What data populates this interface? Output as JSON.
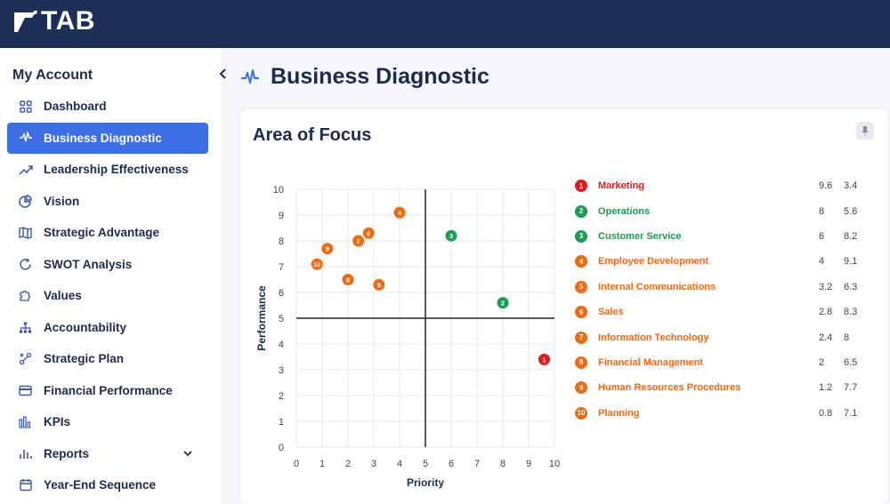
{
  "brand": {
    "logo_text": "TAB"
  },
  "sidebar": {
    "title": "My Account",
    "items": [
      {
        "label": "Dashboard",
        "icon": "grid-icon",
        "active": false
      },
      {
        "label": "Business Diagnostic",
        "icon": "pulse-icon",
        "active": true
      },
      {
        "label": "Leadership Effectiveness",
        "icon": "trending-up-icon",
        "active": false
      },
      {
        "label": "Vision",
        "icon": "pie-icon",
        "active": false
      },
      {
        "label": "Strategic Advantage",
        "icon": "map-icon",
        "active": false
      },
      {
        "label": "SWOT Analysis",
        "icon": "refresh-icon",
        "active": false
      },
      {
        "label": "Values",
        "icon": "puzzle-icon",
        "active": false
      },
      {
        "label": "Accountability",
        "icon": "org-chart-icon",
        "active": false
      },
      {
        "label": "Strategic Plan",
        "icon": "route-icon",
        "active": false
      },
      {
        "label": "Financial Performance",
        "icon": "card-icon",
        "active": false
      },
      {
        "label": "KPIs",
        "icon": "bars-icon",
        "active": false
      },
      {
        "label": "Reports",
        "icon": "bar-chart-icon",
        "active": false,
        "expandable": true
      },
      {
        "label": "Year-End Sequence",
        "icon": "calendar-icon",
        "active": false
      }
    ]
  },
  "page": {
    "title": "Business Diagnostic"
  },
  "card": {
    "title": "Area of Focus"
  },
  "colors": {
    "red": "#e01b1b",
    "green": "#1a9c52",
    "orange": "#f06a12",
    "navy": "#1b2f57",
    "accent": "#3d6fe4"
  },
  "chart_data": {
    "type": "scatter",
    "xlabel": "Priority",
    "ylabel": "Performance",
    "xlim": [
      0,
      10
    ],
    "ylim": [
      0,
      10
    ],
    "x_ticks": [
      "0",
      "1",
      "2",
      "3",
      "4",
      "5",
      "6",
      "7",
      "8",
      "9",
      "10"
    ],
    "y_ticks": [
      "0",
      "1",
      "2",
      "3",
      "4",
      "5",
      "6",
      "7",
      "8",
      "9",
      "10"
    ],
    "grid": true,
    "quadrant_lines": {
      "x": 5,
      "y": 5
    },
    "points": [
      {
        "id": "1",
        "name": "Marketing",
        "x": 9.6,
        "y": 3.4,
        "color": "#e01b1b"
      },
      {
        "id": "2",
        "name": "Operations",
        "x": 8,
        "y": 5.6,
        "color": "#1a9c52"
      },
      {
        "id": "3",
        "name": "Customer Service",
        "x": 6,
        "y": 8.2,
        "color": "#1a9c52"
      },
      {
        "id": "4",
        "name": "Employee Development",
        "x": 4,
        "y": 9.1,
        "color": "#f06a12"
      },
      {
        "id": "5",
        "name": "Internal Communications",
        "x": 3.2,
        "y": 6.3,
        "color": "#f06a12"
      },
      {
        "id": "6",
        "name": "Sales",
        "x": 2.8,
        "y": 8.3,
        "color": "#f06a12"
      },
      {
        "id": "7",
        "name": "Information Technology",
        "x": 2.4,
        "y": 8,
        "color": "#f06a12"
      },
      {
        "id": "8",
        "name": "Financial Management",
        "x": 2,
        "y": 6.5,
        "color": "#f06a12"
      },
      {
        "id": "9",
        "name": "Human Resources Procedures",
        "x": 1.2,
        "y": 7.7,
        "color": "#f06a12"
      },
      {
        "id": "10",
        "name": "Planning",
        "x": 0.8,
        "y": 7.1,
        "color": "#f06a12"
      }
    ]
  }
}
